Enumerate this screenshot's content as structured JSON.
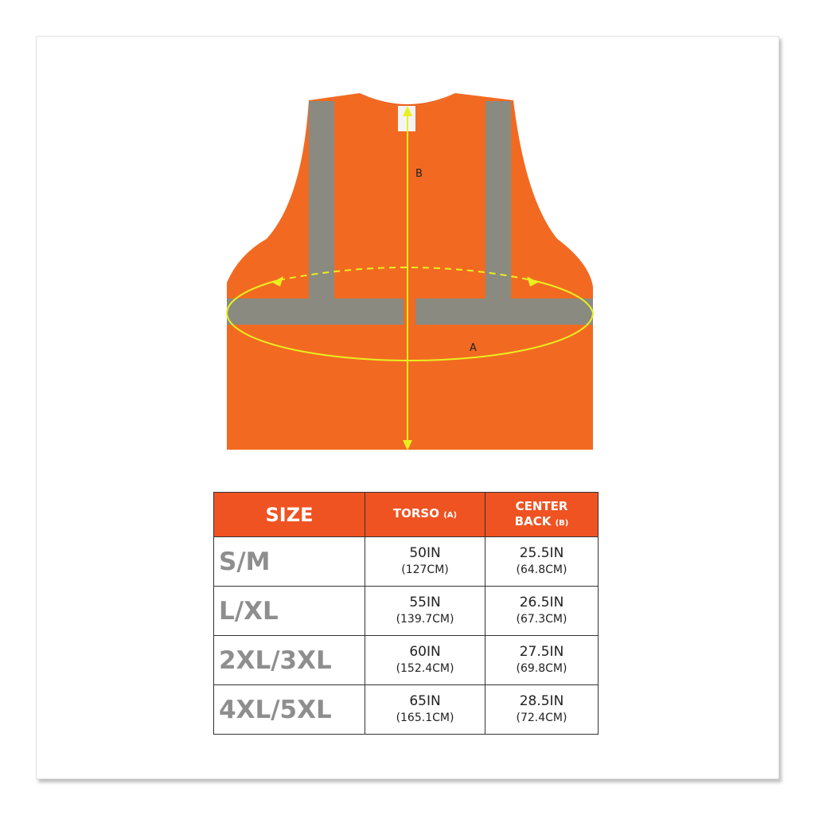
{
  "diagram": {
    "label_a": "A",
    "label_b": "B",
    "colors": {
      "vest": "#f26a21",
      "reflective": "#8a8a80",
      "measure": "#e8f020"
    }
  },
  "table": {
    "headers": {
      "size": "SIZE",
      "torso": "TORSO",
      "torso_sub": "(A)",
      "center_back_line1": "CENTER",
      "center_back_line2": "BACK",
      "center_back_sub": "(B)"
    },
    "rows": [
      {
        "size": "S/M",
        "torso_in": "50IN",
        "torso_cm": "(127CM)",
        "back_in": "25.5IN",
        "back_cm": "(64.8CM)"
      },
      {
        "size": "L/XL",
        "torso_in": "55IN",
        "torso_cm": "(139.7CM)",
        "back_in": "26.5IN",
        "back_cm": "(67.3CM)"
      },
      {
        "size": "2XL/3XL",
        "torso_in": "60IN",
        "torso_cm": "(152.4CM)",
        "back_in": "27.5IN",
        "back_cm": "(69.8CM)"
      },
      {
        "size": "4XL/5XL",
        "torso_in": "65IN",
        "torso_cm": "(165.1CM)",
        "back_in": "28.5IN",
        "back_cm": "(72.4CM)"
      }
    ],
    "header_color": "#ef5322"
  }
}
